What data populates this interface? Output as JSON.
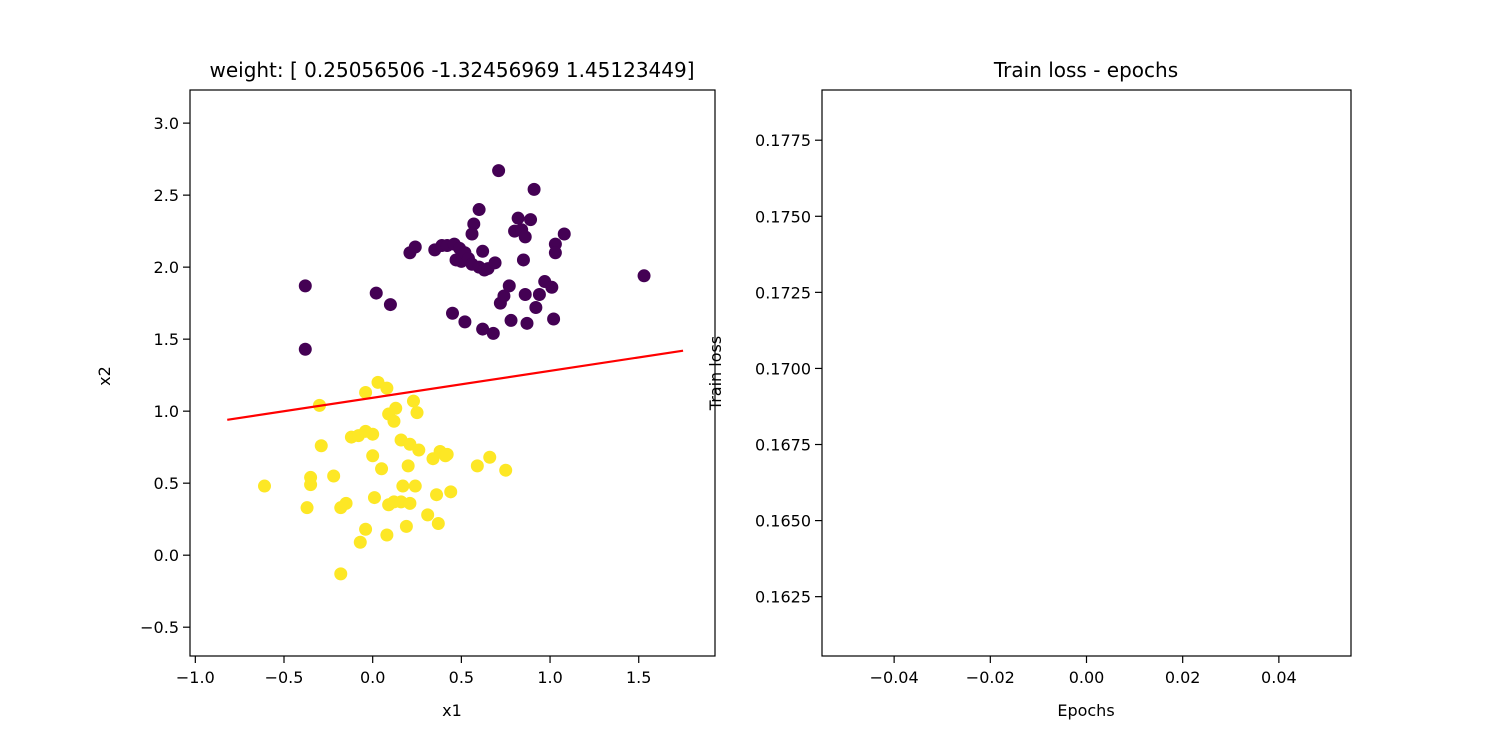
{
  "chart_data": [
    {
      "type": "scatter",
      "title": "weight: [ 0.25056506 -1.32456969  1.45123449]",
      "xlabel": "x1",
      "ylabel": "x2",
      "xlim": [
        -1.03,
        1.93
      ],
      "ylim": [
        -0.7,
        3.23
      ],
      "xticks": [
        -1.0,
        -0.5,
        0.0,
        0.5,
        1.0,
        1.5
      ],
      "xtick_labels": [
        "−1.0",
        "−0.5",
        "0.0",
        "0.5",
        "1.0",
        "1.5"
      ],
      "yticks": [
        -0.5,
        0.0,
        0.5,
        1.0,
        1.5,
        2.0,
        2.5,
        3.0
      ],
      "ytick_labels": [
        "−0.5",
        "0.0",
        "0.5",
        "1.0",
        "1.5",
        "2.0",
        "2.5",
        "3.0"
      ],
      "grid": false,
      "series": [
        {
          "color": "#440154",
          "points": [
            [
              -0.38,
              1.87
            ],
            [
              -0.38,
              1.43
            ],
            [
              0.02,
              1.82
            ],
            [
              0.1,
              1.74
            ],
            [
              0.21,
              2.1
            ],
            [
              0.24,
              2.14
            ],
            [
              0.35,
              2.12
            ],
            [
              0.39,
              2.15
            ],
            [
              0.42,
              2.15
            ],
            [
              0.46,
              2.16
            ],
            [
              0.49,
              2.13
            ],
            [
              0.47,
              2.05
            ],
            [
              0.5,
              2.04
            ],
            [
              0.52,
              2.1
            ],
            [
              0.54,
              2.06
            ],
            [
              0.56,
              2.02
            ],
            [
              0.57,
              2.3
            ],
            [
              0.56,
              2.23
            ],
            [
              0.6,
              2.0
            ],
            [
              0.6,
              2.4
            ],
            [
              0.62,
              2.11
            ],
            [
              0.63,
              1.98
            ],
            [
              0.65,
              1.99
            ],
            [
              0.69,
              2.03
            ],
            [
              0.71,
              2.67
            ],
            [
              0.72,
              1.75
            ],
            [
              0.74,
              1.8
            ],
            [
              0.77,
              1.87
            ],
            [
              0.78,
              1.63
            ],
            [
              0.8,
              2.25
            ],
            [
              0.82,
              2.34
            ],
            [
              0.84,
              2.26
            ],
            [
              0.85,
              2.05
            ],
            [
              0.86,
              2.21
            ],
            [
              0.86,
              1.81
            ],
            [
              0.87,
              1.61
            ],
            [
              0.89,
              2.33
            ],
            [
              0.91,
              2.54
            ],
            [
              0.92,
              1.72
            ],
            [
              0.94,
              1.81
            ],
            [
              0.97,
              1.9
            ],
            [
              1.01,
              1.86
            ],
            [
              1.02,
              1.64
            ],
            [
              1.03,
              2.16
            ],
            [
              1.03,
              2.1
            ],
            [
              1.08,
              2.23
            ],
            [
              1.53,
              1.94
            ],
            [
              0.45,
              1.68
            ],
            [
              0.52,
              1.62
            ],
            [
              0.62,
              1.57
            ],
            [
              0.68,
              1.54
            ]
          ]
        },
        {
          "color": "#fde725",
          "points": [
            [
              -0.61,
              0.48
            ],
            [
              -0.37,
              0.33
            ],
            [
              -0.35,
              0.54
            ],
            [
              -0.35,
              0.49
            ],
            [
              -0.3,
              1.04
            ],
            [
              -0.29,
              0.76
            ],
            [
              -0.22,
              0.55
            ],
            [
              -0.18,
              -0.13
            ],
            [
              -0.18,
              0.33
            ],
            [
              -0.15,
              0.36
            ],
            [
              -0.12,
              0.82
            ],
            [
              -0.08,
              0.83
            ],
            [
              -0.07,
              0.09
            ],
            [
              -0.04,
              0.86
            ],
            [
              -0.04,
              1.13
            ],
            [
              -0.04,
              0.18
            ],
            [
              0.0,
              0.69
            ],
            [
              0.0,
              0.84
            ],
            [
              0.01,
              0.4
            ],
            [
              0.03,
              1.2
            ],
            [
              0.05,
              0.6
            ],
            [
              0.08,
              1.16
            ],
            [
              0.08,
              0.14
            ],
            [
              0.09,
              0.98
            ],
            [
              0.09,
              0.35
            ],
            [
              0.12,
              0.37
            ],
            [
              0.13,
              1.02
            ],
            [
              0.12,
              0.93
            ],
            [
              0.16,
              0.8
            ],
            [
              0.16,
              0.37
            ],
            [
              0.17,
              0.48
            ],
            [
              0.19,
              0.2
            ],
            [
              0.2,
              0.62
            ],
            [
              0.21,
              0.77
            ],
            [
              0.21,
              0.36
            ],
            [
              0.23,
              1.07
            ],
            [
              0.24,
              0.48
            ],
            [
              0.26,
              0.73
            ],
            [
              0.25,
              0.99
            ],
            [
              0.31,
              0.28
            ],
            [
              0.34,
              0.67
            ],
            [
              0.36,
              0.42
            ],
            [
              0.37,
              0.22
            ],
            [
              0.38,
              0.72
            ],
            [
              0.41,
              0.69
            ],
            [
              0.42,
              0.7
            ],
            [
              0.44,
              0.44
            ],
            [
              0.59,
              0.62
            ],
            [
              0.66,
              0.68
            ],
            [
              0.75,
              0.59
            ]
          ]
        }
      ],
      "line": {
        "color": "#ff0000",
        "x": [
          -0.82,
          1.75
        ],
        "y": [
          0.94,
          1.42
        ]
      }
    },
    {
      "type": "line",
      "title": "Train loss - epochs",
      "xlabel": "Epochs",
      "ylabel": "Train loss",
      "xlim": [
        -0.055,
        0.055
      ],
      "ylim": [
        0.16055,
        0.17915
      ],
      "xticks": [
        -0.04,
        -0.02,
        0.0,
        0.02,
        0.04
      ],
      "xtick_labels": [
        "−0.04",
        "−0.02",
        "0.00",
        "0.02",
        "0.04"
      ],
      "yticks": [
        0.1625,
        0.165,
        0.1675,
        0.17,
        0.1725,
        0.175,
        0.1775
      ],
      "ytick_labels": [
        "0.1625",
        "0.1650",
        "0.1675",
        "0.1700",
        "0.1725",
        "0.1750",
        "0.1775"
      ],
      "grid": false,
      "series": []
    }
  ]
}
